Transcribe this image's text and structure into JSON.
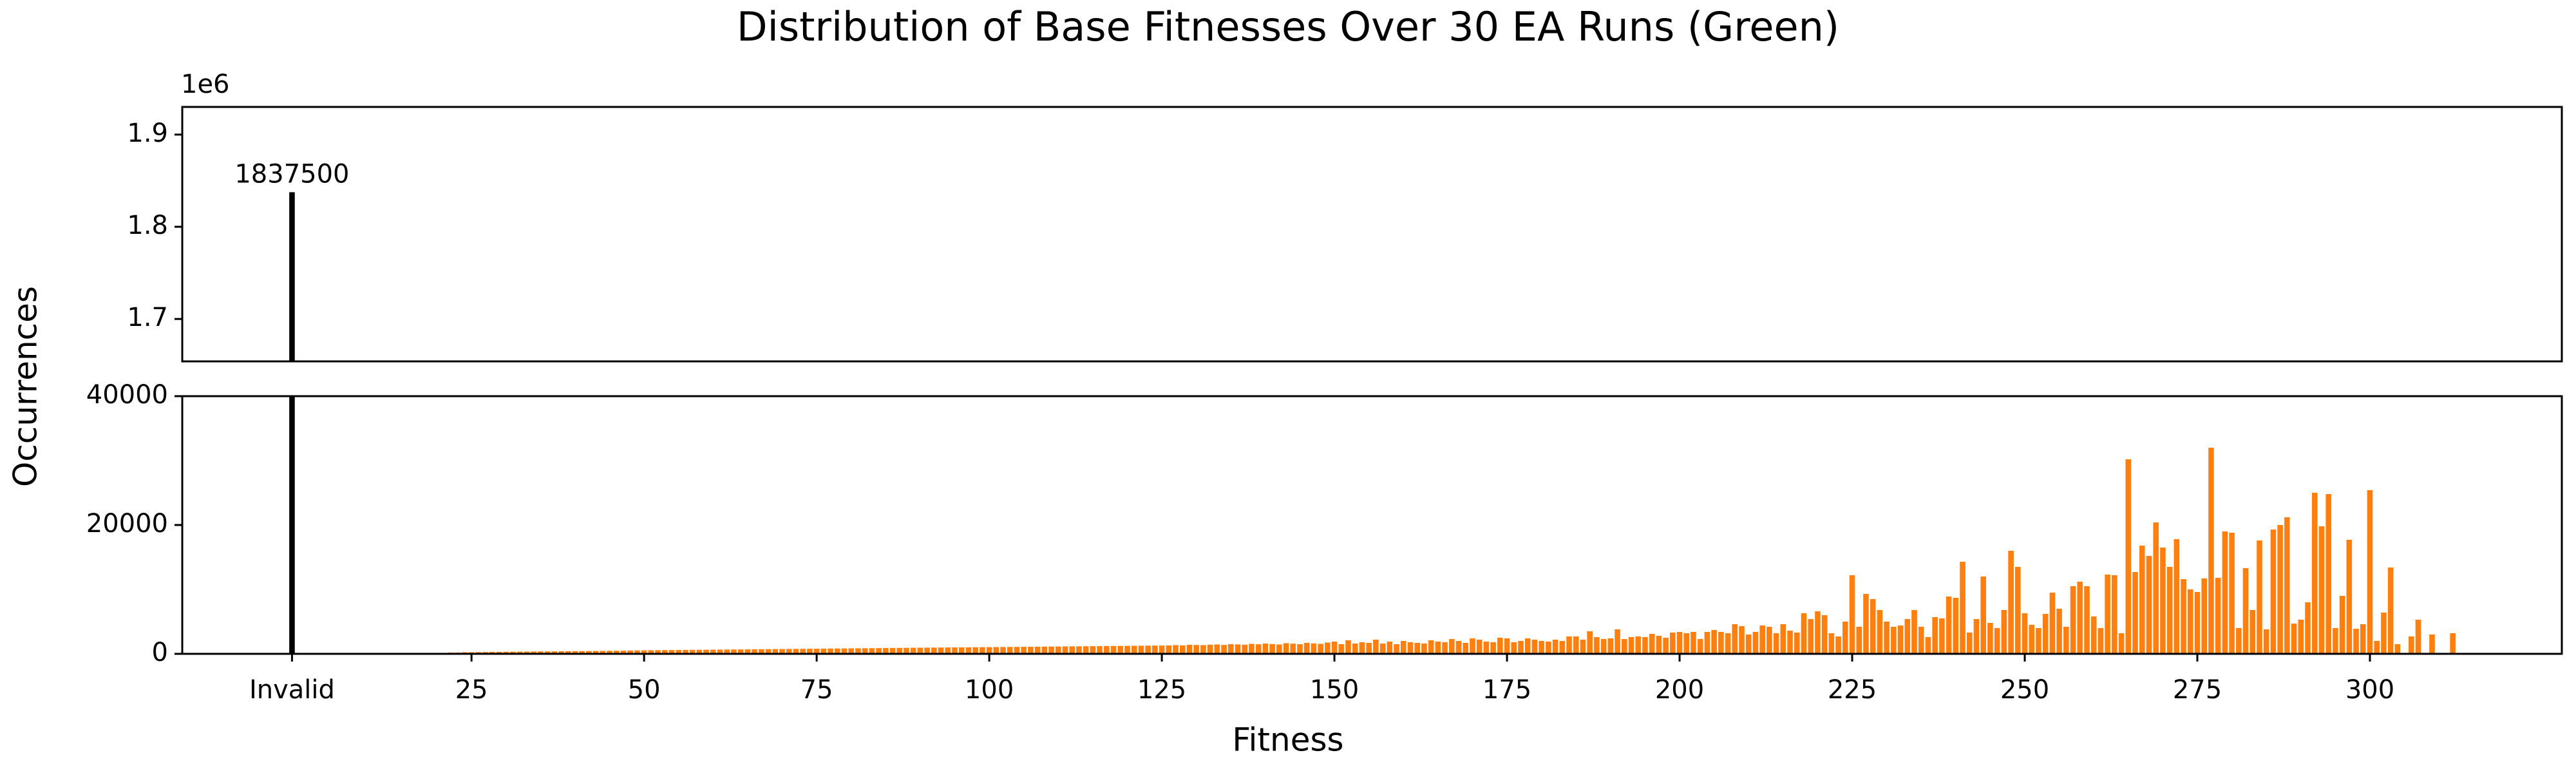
{
  "chart_data": {
    "type": "bar",
    "title": "Distribution of Base Fitnesses Over 30 EA Runs (Green)",
    "xlabel": "Fitness",
    "ylabel": "Occurrences",
    "top_offset_label": "1e6",
    "color": "#ff7f0e",
    "invalid": {
      "x": -1,
      "value": 1837500,
      "color": "#000000"
    },
    "xlim": [
      -16.9,
      327.8
    ],
    "xticks": [
      {
        "value": -1,
        "label": "Invalid"
      },
      25,
      50,
      75,
      100,
      125,
      150,
      175,
      200,
      225,
      250,
      275,
      300
    ],
    "top_ylim": [
      1654000,
      1930000
    ],
    "top_yticks": [
      {
        "value": 1700000,
        "label": "1.7"
      },
      {
        "value": 1800000,
        "label": "1.8"
      },
      {
        "value": 1900000,
        "label": "1.9"
      }
    ],
    "ylim": [
      0,
      40000
    ],
    "yticks": [
      0,
      20000,
      40000
    ],
    "x": [
      19,
      20,
      21,
      22,
      23,
      24,
      25,
      26,
      27,
      28,
      29,
      30,
      31,
      32,
      33,
      34,
      35,
      36,
      37,
      38,
      39,
      40,
      41,
      42,
      43,
      44,
      45,
      46,
      47,
      48,
      49,
      50,
      51,
      52,
      53,
      54,
      55,
      56,
      57,
      58,
      59,
      60,
      61,
      62,
      63,
      64,
      65,
      66,
      67,
      68,
      69,
      70,
      71,
      72,
      73,
      74,
      75,
      76,
      77,
      78,
      79,
      80,
      81,
      82,
      83,
      84,
      85,
      86,
      87,
      88,
      89,
      90,
      91,
      92,
      93,
      94,
      95,
      96,
      97,
      98,
      99,
      100,
      101,
      102,
      103,
      104,
      105,
      106,
      107,
      108,
      109,
      110,
      111,
      112,
      113,
      114,
      115,
      116,
      117,
      118,
      119,
      120,
      121,
      122,
      123,
      124,
      125,
      126,
      127,
      128,
      129,
      130,
      131,
      132,
      133,
      134,
      135,
      136,
      137,
      138,
      139,
      140,
      141,
      142,
      143,
      144,
      145,
      146,
      147,
      148,
      149,
      150,
      151,
      152,
      153,
      154,
      155,
      156,
      157,
      158,
      159,
      160,
      161,
      162,
      163,
      164,
      165,
      166,
      167,
      168,
      169,
      170,
      171,
      172,
      173,
      174,
      175,
      176,
      177,
      178,
      179,
      180,
      181,
      182,
      183,
      184,
      185,
      186,
      187,
      188,
      189,
      190,
      191,
      192,
      193,
      194,
      195,
      196,
      197,
      198,
      199,
      200,
      201,
      202,
      203,
      204,
      205,
      206,
      207,
      208,
      209,
      210,
      211,
      212,
      213,
      214,
      215,
      216,
      217,
      218,
      219,
      220,
      221,
      222,
      223,
      224,
      225,
      226,
      227,
      228,
      229,
      230,
      231,
      232,
      233,
      234,
      235,
      236,
      237,
      238,
      239,
      240,
      241,
      242,
      243,
      244,
      245,
      246,
      247,
      248,
      249,
      250,
      251,
      252,
      253,
      254,
      255,
      256,
      257,
      258,
      259,
      260,
      261,
      262,
      263,
      264,
      265,
      266,
      267,
      268,
      269,
      270,
      271,
      272,
      273,
      274,
      275,
      276,
      277,
      278,
      279,
      280,
      281,
      282,
      283,
      284,
      285,
      286,
      287,
      288,
      289,
      290,
      291,
      292,
      293,
      294,
      295,
      296,
      297,
      298,
      299,
      300,
      301,
      302,
      303,
      304,
      305,
      306,
      307,
      308,
      309,
      310,
      311,
      312
    ],
    "values": [
      100,
      150,
      150,
      200,
      200,
      250,
      250,
      270,
      280,
      300,
      310,
      320,
      330,
      340,
      350,
      360,
      370,
      380,
      390,
      400,
      410,
      420,
      430,
      440,
      450,
      460,
      480,
      490,
      500,
      520,
      540,
      550,
      560,
      570,
      580,
      590,
      600,
      610,
      620,
      630,
      640,
      650,
      660,
      670,
      680,
      690,
      700,
      710,
      720,
      730,
      740,
      750,
      760,
      770,
      780,
      790,
      800,
      810,
      820,
      830,
      840,
      850,
      860,
      870,
      880,
      890,
      900,
      910,
      920,
      930,
      940,
      950,
      960,
      970,
      980,
      990,
      1000,
      1000,
      1010,
      1020,
      1030,
      1040,
      1050,
      1060,
      1070,
      1080,
      1090,
      1100,
      1110,
      1120,
      1130,
      1140,
      1150,
      1160,
      1170,
      1180,
      1190,
      1200,
      1210,
      1220,
      1230,
      1240,
      1250,
      1260,
      1270,
      1280,
      1290,
      1300,
      1350,
      1320,
      1400,
      1380,
      1350,
      1420,
      1450,
      1380,
      1500,
      1460,
      1420,
      1550,
      1480,
      1600,
      1520,
      1450,
      1650,
      1580,
      1500,
      1700,
      1620,
      1550,
      1750,
      1900,
      1500,
      2100,
      1600,
      1800,
      1700,
      2200,
      1600,
      1900,
      1500,
      2000,
      1800,
      1700,
      1600,
      2100,
      1900,
      1800,
      2300,
      2000,
      1700,
      2400,
      2200,
      1900,
      1800,
      2500,
      2400,
      1800,
      2000,
      2400,
      2200,
      2000,
      1900,
      2200,
      2000,
      2700,
      2700,
      2200,
      3500,
      2600,
      2300,
      2400,
      3800,
      2300,
      2600,
      2700,
      2600,
      3100,
      2800,
      2500,
      3300,
      3400,
      3200,
      3400,
      2300,
      3400,
      3700,
      3400,
      3200,
      4600,
      4300,
      3000,
      3400,
      4400,
      4200,
      3200,
      4600,
      3600,
      3300,
      6300,
      5400,
      6600,
      6000,
      3200,
      2700,
      5000,
      12200,
      4200,
      9300,
      8500,
      6800,
      5000,
      4200,
      4400,
      5400,
      6800,
      4200,
      2600,
      5700,
      5500,
      8900,
      8700,
      14300,
      3300,
      5400,
      12000,
      4800,
      4000,
      6800,
      16000,
      13500,
      6300,
      4500,
      4000,
      6200,
      9500,
      7000,
      4200,
      10500,
      11200,
      10500,
      5800,
      4000,
      12300,
      12200,
      3200,
      30200,
      12700,
      16800,
      15200,
      20400,
      16500,
      13500,
      17800,
      11600,
      10000,
      9600,
      11700,
      32000,
      11800,
      19000,
      18800,
      4000,
      13300,
      6800,
      17600,
      3800,
      19300,
      20000,
      21200,
      4700,
      5300,
      8000,
      25000,
      19800,
      24800,
      4000,
      9000,
      17700,
      3900,
      4600,
      25400,
      2000,
      6400,
      13400,
      1500,
      0,
      2700,
      5300,
      0,
      3000,
      0,
      0,
      3200
    ]
  }
}
